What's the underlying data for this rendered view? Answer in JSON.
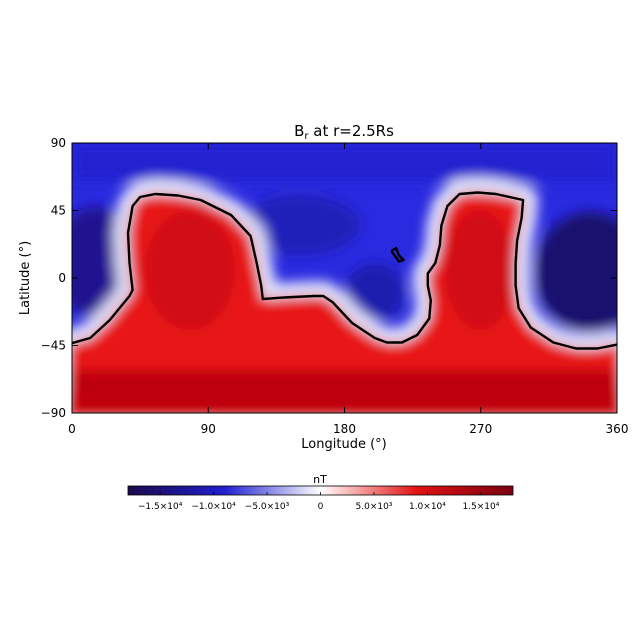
{
  "chart_data": {
    "type": "heatmap",
    "title": "B",
    "title_subscript": "r",
    "title_suffix": " at r=2.5Rs",
    "xlabel": "Longitude (°)",
    "ylabel": "Latitude (°)",
    "xlim": [
      0,
      360
    ],
    "ylim": [
      -90,
      90
    ],
    "xticks": [
      {
        "value": 0,
        "label": "0"
      },
      {
        "value": 90,
        "label": "90"
      },
      {
        "value": 180,
        "label": "180"
      },
      {
        "value": 270,
        "label": "270"
      },
      {
        "value": 360,
        "label": "360"
      }
    ],
    "yticks": [
      {
        "value": 90,
        "label": "90"
      },
      {
        "value": 45,
        "label": "45"
      },
      {
        "value": 0,
        "label": "0"
      },
      {
        "value": -45,
        "label": "−45"
      },
      {
        "value": -90,
        "label": "−90"
      }
    ],
    "colorbar": {
      "label": "nT",
      "vmin": -18000,
      "vmax": 18000,
      "colors": [
        "#1a0a4a",
        "#1f1fd0",
        "#ffffff",
        "#e21212",
        "#7a0010"
      ],
      "ticks": [
        {
          "value": -15000,
          "label": "−1.5×10⁴"
        },
        {
          "value": -10000,
          "label": "−1.0×10⁴"
        },
        {
          "value": -5000,
          "label": "−5.0×10³"
        },
        {
          "value": 0,
          "label": "0"
        },
        {
          "value": 5000,
          "label": "5.0×10³"
        },
        {
          "value": 10000,
          "label": "1.0×10⁴"
        },
        {
          "value": 15000,
          "label": "1.5×10⁴"
        }
      ]
    },
    "neutral_line_color": "#000000",
    "neutral_lines": [
      [
        [
          -2,
          -44
        ],
        [
          12,
          -40
        ],
        [
          25,
          -28
        ],
        [
          38,
          -12
        ],
        [
          40,
          -8
        ],
        [
          38,
          10
        ],
        [
          37,
          30
        ],
        [
          40,
          48
        ],
        [
          45,
          54
        ],
        [
          55,
          56
        ],
        [
          70,
          55
        ],
        [
          85,
          52
        ],
        [
          105,
          42
        ],
        [
          118,
          28
        ],
        [
          122,
          10
        ],
        [
          125,
          -5
        ],
        [
          126,
          -14
        ],
        [
          140,
          -13
        ],
        [
          160,
          -12
        ],
        [
          166,
          -12
        ],
        [
          172,
          -16
        ],
        [
          185,
          -30
        ],
        [
          200,
          -40
        ],
        [
          208,
          -43
        ],
        [
          218,
          -43
        ],
        [
          228,
          -38
        ],
        [
          236,
          -27
        ],
        [
          237,
          -15
        ],
        [
          235,
          -5
        ],
        [
          235,
          3
        ],
        [
          240,
          10
        ],
        [
          243,
          22
        ],
        [
          244,
          35
        ],
        [
          248,
          48
        ],
        [
          256,
          56
        ],
        [
          268,
          57
        ],
        [
          280,
          56
        ],
        [
          298,
          52
        ],
        [
          297,
          40
        ],
        [
          294,
          25
        ],
        [
          293,
          10
        ],
        [
          293,
          -5
        ],
        [
          295,
          -20
        ],
        [
          303,
          -33
        ],
        [
          318,
          -43
        ],
        [
          333,
          -47
        ],
        [
          347,
          -47
        ],
        [
          362,
          -44
        ]
      ],
      [
        [
          211,
          18
        ],
        [
          214,
          20
        ],
        [
          216,
          15
        ],
        [
          219,
          12
        ],
        [
          216,
          11
        ],
        [
          211,
          18
        ]
      ]
    ]
  }
}
